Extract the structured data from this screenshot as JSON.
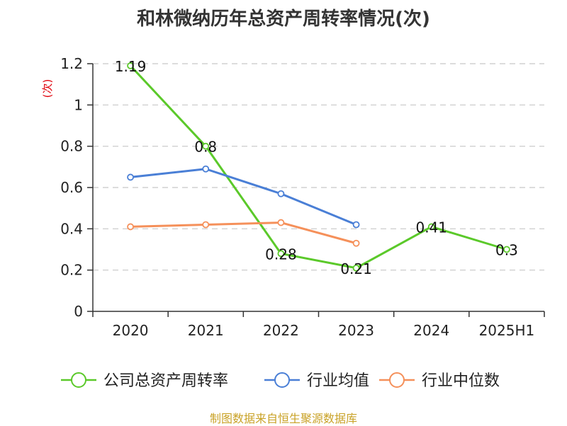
{
  "chart_title": "和林微纳历年总资产周转率情况(次)",
  "source_text": "制图数据来自恒生聚源数据库",
  "colors": {
    "series": [
      "#5bc92a",
      "#4a7fd6",
      "#f5905a"
    ],
    "grid": "#c8c8c8",
    "axis": "#333333",
    "ylabel": "#e0000a",
    "text": "#222222"
  },
  "chart_data": {
    "type": "line",
    "title": "和林微纳历年总资产周转率情况(次)",
    "ylabel": "(次)",
    "xlabel": "",
    "ylim": [
      0,
      1.2
    ],
    "yticks": [
      0,
      0.2,
      0.4,
      0.6,
      0.8,
      1,
      1.2
    ],
    "ytick_labels": [
      "0",
      "0.2",
      "0.4",
      "0.6",
      "0.8",
      "1",
      "1.2"
    ],
    "categories": [
      "2020",
      "2021",
      "2022",
      "2023",
      "2024",
      "2025H1"
    ],
    "grid": true,
    "legend_position": "bottom",
    "series": [
      {
        "name": "公司总资产周转率",
        "values": [
          1.19,
          0.8,
          0.28,
          0.21,
          0.41,
          0.3
        ],
        "labels": [
          "1.19",
          "0.8",
          "0.28",
          "0.21",
          "0.41",
          "0.3"
        ]
      },
      {
        "name": "行业均值",
        "values": [
          0.65,
          0.69,
          0.57,
          0.42,
          null,
          null
        ],
        "labels": []
      },
      {
        "name": "行业中位数",
        "values": [
          0.41,
          0.42,
          0.43,
          0.33,
          null,
          null
        ],
        "labels": []
      }
    ]
  }
}
